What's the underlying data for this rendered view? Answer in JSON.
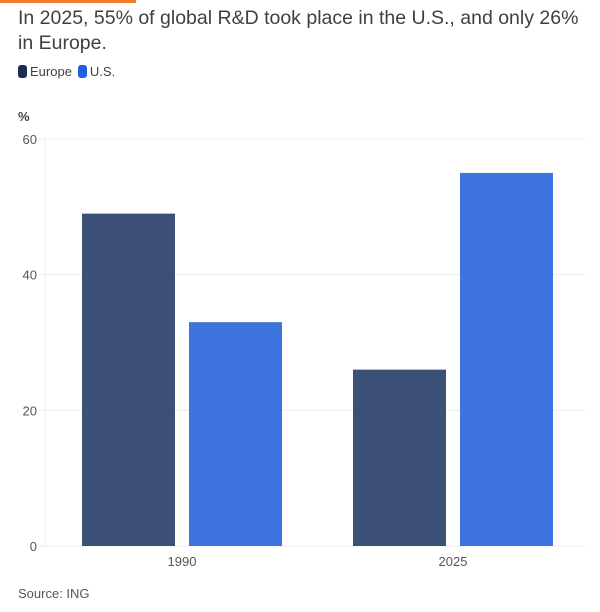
{
  "title": "In 2025, 55% of global R&D took place in the U.S., and only 26% in Europe.",
  "source": "Source: ING",
  "colors": {
    "accent": "#f07a2e",
    "Europe": "#3d5077",
    "U.S.": "#3e74de"
  },
  "chart_data": {
    "type": "bar",
    "title": "In 2025, 55% of global R&D took place in the U.S., and only 26% in Europe.",
    "ylabel": "%",
    "xlabel": "",
    "categories": [
      "1990",
      "2025"
    ],
    "series": [
      {
        "name": "Europe",
        "values": [
          49,
          26
        ]
      },
      {
        "name": "U.S.",
        "values": [
          33,
          55
        ]
      }
    ],
    "ylim": [
      0,
      60
    ],
    "yticks": [
      0,
      20,
      40,
      60
    ],
    "grid": true,
    "legend": "top-left"
  }
}
